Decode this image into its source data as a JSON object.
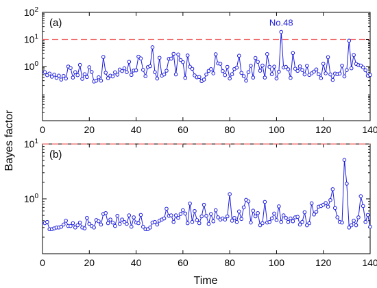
{
  "figure": {
    "ylabel": "Bayes factor",
    "xlabel": "Time"
  },
  "chart_data": [
    {
      "type": "line",
      "panel_label": "(a)",
      "yscale": "log",
      "xlim": [
        0,
        140
      ],
      "ylim": [
        0.01,
        100
      ],
      "xticks": [
        0,
        20,
        40,
        60,
        80,
        100,
        120,
        140
      ],
      "xtick_labels": [
        "0",
        "20",
        "40",
        "60",
        "80",
        "100",
        "120",
        "140"
      ],
      "yticks": [
        1,
        10,
        100
      ],
      "ytick_labels": [
        "10^0",
        "10^1",
        "10^2"
      ],
      "threshold": 10,
      "annotation": {
        "text": "No.48",
        "x": 102,
        "y": 18.9
      },
      "series": [
        {
          "color": "#1a1adc",
          "x": [
            1,
            2,
            3,
            4,
            5,
            6,
            7,
            8,
            9,
            10,
            11,
            12,
            13,
            14,
            15,
            16,
            17,
            18,
            19,
            20,
            21,
            22,
            23,
            24,
            25,
            26,
            27,
            28,
            29,
            30,
            31,
            32,
            33,
            34,
            35,
            36,
            37,
            38,
            39,
            40,
            41,
            42,
            43,
            44,
            45,
            46,
            47,
            48,
            49,
            50,
            51,
            52,
            53,
            54,
            55,
            56,
            57,
            58,
            59,
            60,
            61,
            62,
            63,
            64,
            65,
            66,
            67,
            68,
            69,
            70,
            71,
            72,
            73,
            74,
            75,
            76,
            77,
            78,
            79,
            80,
            81,
            82,
            83,
            84,
            85,
            86,
            87,
            88,
            89,
            90,
            91,
            92,
            93,
            94,
            95,
            96,
            97,
            98,
            99,
            100,
            101,
            102,
            103,
            104,
            105,
            106,
            107,
            108,
            109,
            110,
            111,
            112,
            113,
            114,
            115,
            116,
            117,
            118,
            119,
            120,
            121,
            122,
            123,
            124,
            125,
            126,
            127,
            128,
            129,
            130,
            131,
            132,
            133,
            134,
            135,
            136,
            137,
            138,
            139,
            140
          ],
          "y": [
            0.62,
            0.48,
            0.55,
            0.42,
            0.5,
            0.38,
            0.46,
            0.33,
            0.45,
            0.36,
            1.0,
            0.88,
            0.39,
            0.62,
            0.48,
            1.15,
            0.35,
            0.52,
            0.41,
            0.94,
            0.63,
            0.28,
            0.3,
            0.4,
            0.3,
            2.25,
            0.59,
            0.37,
            0.46,
            0.43,
            0.61,
            0.5,
            0.77,
            0.68,
            0.86,
            0.62,
            1.49,
            0.49,
            0.71,
            0.72,
            2.31,
            1.99,
            0.75,
            0.44,
            0.95,
            1.03,
            5.13,
            0.62,
            0.36,
            2.1,
            0.46,
            0.51,
            0.7,
            1.92,
            1.95,
            2.93,
            0.51,
            2.78,
            1.74,
            1.45,
            0.38,
            2.56,
            0.98,
            0.82,
            0.47,
            0.4,
            0.41,
            0.29,
            0.33,
            0.51,
            0.69,
            0.8,
            0.56,
            2.84,
            1.3,
            1.26,
            0.68,
            0.48,
            0.97,
            0.36,
            0.52,
            0.81,
            0.91,
            2.51,
            0.58,
            0.44,
            0.3,
            0.62,
            1.07,
            0.39,
            2.06,
            1.49,
            0.7,
            1.09,
            0.39,
            2.89,
            0.97,
            0.52,
            0.99,
            0.36,
            0.64,
            18.9,
            0.92,
            0.97,
            0.79,
            0.38,
            3.15,
            0.83,
            0.69,
            1.01,
            0.74,
            0.51,
            1.06,
            0.49,
            0.56,
            0.65,
            0.78,
            0.52,
            0.37,
            1.26,
            0.56,
            2.21,
            0.51,
            0.32,
            0.55,
            0.52,
            0.55,
            1.08,
            0.43,
            0.74,
            9.0,
            0.86,
            2.66,
            1.25,
            1.13,
            1.09,
            0.93,
            0.73,
            0.46,
            0.49
          ]
        }
      ]
    },
    {
      "type": "line",
      "panel_label": "(b)",
      "yscale": "log",
      "xlim": [
        0,
        140
      ],
      "ylim": [
        0.1,
        10
      ],
      "xticks": [
        0,
        20,
        40,
        60,
        80,
        100,
        120,
        140
      ],
      "xtick_labels": [
        "0",
        "20",
        "40",
        "60",
        "80",
        "100",
        "120",
        "140"
      ],
      "yticks": [
        1,
        10
      ],
      "ytick_labels": [
        "10^0",
        "10^1"
      ],
      "threshold": 10,
      "series": [
        {
          "color": "#1a1adc",
          "x": [
            1,
            2,
            3,
            4,
            5,
            6,
            7,
            8,
            9,
            10,
            11,
            12,
            13,
            14,
            15,
            16,
            17,
            18,
            19,
            20,
            21,
            22,
            23,
            24,
            25,
            26,
            27,
            28,
            29,
            30,
            31,
            32,
            33,
            34,
            35,
            36,
            37,
            38,
            39,
            40,
            41,
            42,
            43,
            44,
            45,
            46,
            47,
            48,
            49,
            50,
            51,
            52,
            53,
            54,
            55,
            56,
            57,
            58,
            59,
            60,
            61,
            62,
            63,
            64,
            65,
            66,
            67,
            68,
            69,
            70,
            71,
            72,
            73,
            74,
            75,
            76,
            77,
            78,
            79,
            80,
            81,
            82,
            83,
            84,
            85,
            86,
            87,
            88,
            89,
            90,
            91,
            92,
            93,
            94,
            95,
            96,
            97,
            98,
            99,
            100,
            101,
            102,
            103,
            104,
            105,
            106,
            107,
            108,
            109,
            110,
            111,
            112,
            113,
            114,
            115,
            116,
            117,
            118,
            119,
            120,
            121,
            122,
            123,
            124,
            125,
            126,
            127,
            128,
            129,
            130,
            131,
            132,
            133,
            134,
            135,
            136,
            137,
            138,
            139,
            140
          ],
          "y": [
            0.36,
            0.38,
            0.28,
            0.28,
            0.29,
            0.3,
            0.3,
            0.31,
            0.34,
            0.4,
            0.32,
            0.32,
            0.36,
            0.3,
            0.33,
            0.37,
            0.3,
            0.29,
            0.45,
            0.35,
            0.32,
            0.3,
            0.41,
            0.39,
            0.34,
            0.53,
            0.55,
            0.36,
            0.42,
            0.37,
            0.32,
            0.49,
            0.35,
            0.42,
            0.38,
            0.35,
            0.5,
            0.31,
            0.46,
            0.37,
            0.36,
            0.51,
            0.31,
            0.28,
            0.28,
            0.3,
            0.37,
            0.38,
            0.34,
            0.4,
            0.42,
            0.44,
            0.66,
            0.49,
            0.5,
            0.38,
            0.5,
            0.45,
            0.53,
            0.62,
            0.54,
            0.36,
            0.82,
            0.38,
            0.6,
            0.41,
            0.36,
            0.48,
            0.78,
            0.49,
            0.35,
            0.53,
            0.39,
            0.62,
            0.46,
            0.42,
            0.44,
            0.42,
            0.48,
            1.22,
            0.4,
            0.45,
            0.38,
            0.59,
            0.43,
            0.7,
            0.96,
            0.9,
            0.37,
            0.61,
            0.48,
            0.55,
            0.33,
            0.36,
            0.88,
            0.37,
            0.38,
            0.44,
            0.54,
            0.41,
            0.73,
            0.38,
            0.5,
            0.45,
            0.38,
            0.44,
            0.39,
            0.46,
            0.47,
            0.34,
            0.38,
            0.57,
            0.33,
            0.36,
            0.83,
            0.52,
            0.58,
            0.72,
            0.74,
            0.78,
            0.84,
            0.72,
            0.95,
            1.5,
            0.68,
            0.46,
            0.38,
            0.37,
            5.13,
            1.89,
            0.3,
            0.33,
            0.4,
            0.33,
            0.46,
            1.12,
            0.74,
            0.38,
            0.51,
            0.31
          ]
        }
      ]
    }
  ]
}
